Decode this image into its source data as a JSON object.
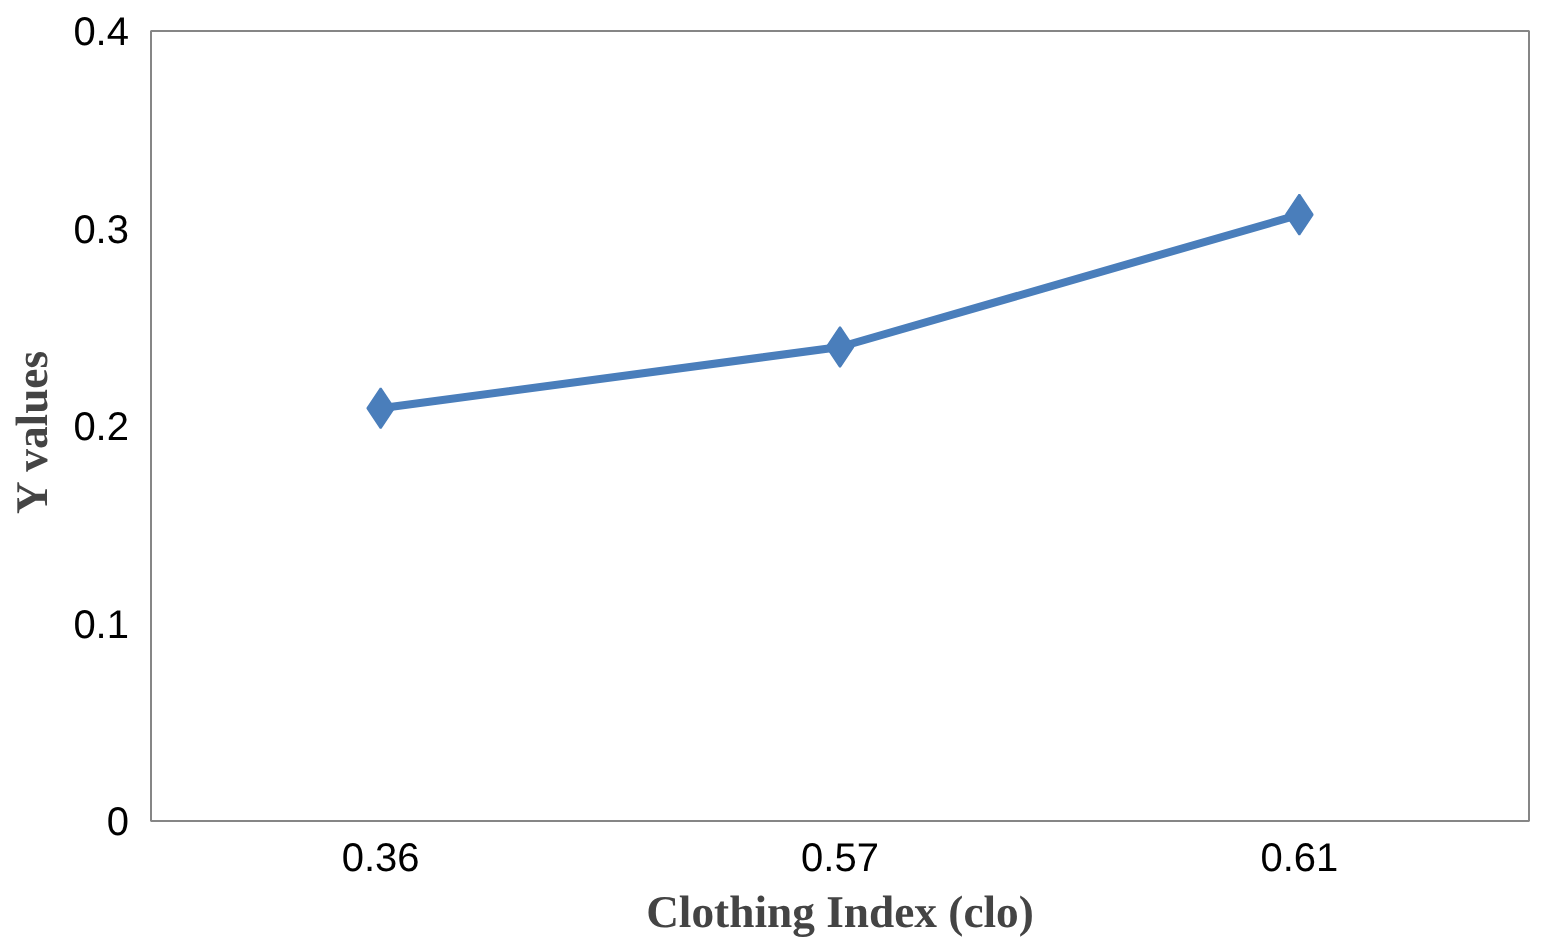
{
  "chart_data": {
    "type": "line",
    "xlabel": "Clothing Index (clo)",
    "ylabel": "Y  values",
    "categories": [
      "0.36",
      "0.57",
      "0.61"
    ],
    "series": [
      {
        "color": "#4a7ebb",
        "values": [
          0.209,
          0.24,
          0.307
        ]
      }
    ],
    "ylim": [
      0,
      0.4
    ],
    "yticks": [
      0,
      0.1,
      0.2,
      0.3,
      0.4
    ],
    "grid": false,
    "marker": "diamond",
    "line_style": "solid"
  }
}
